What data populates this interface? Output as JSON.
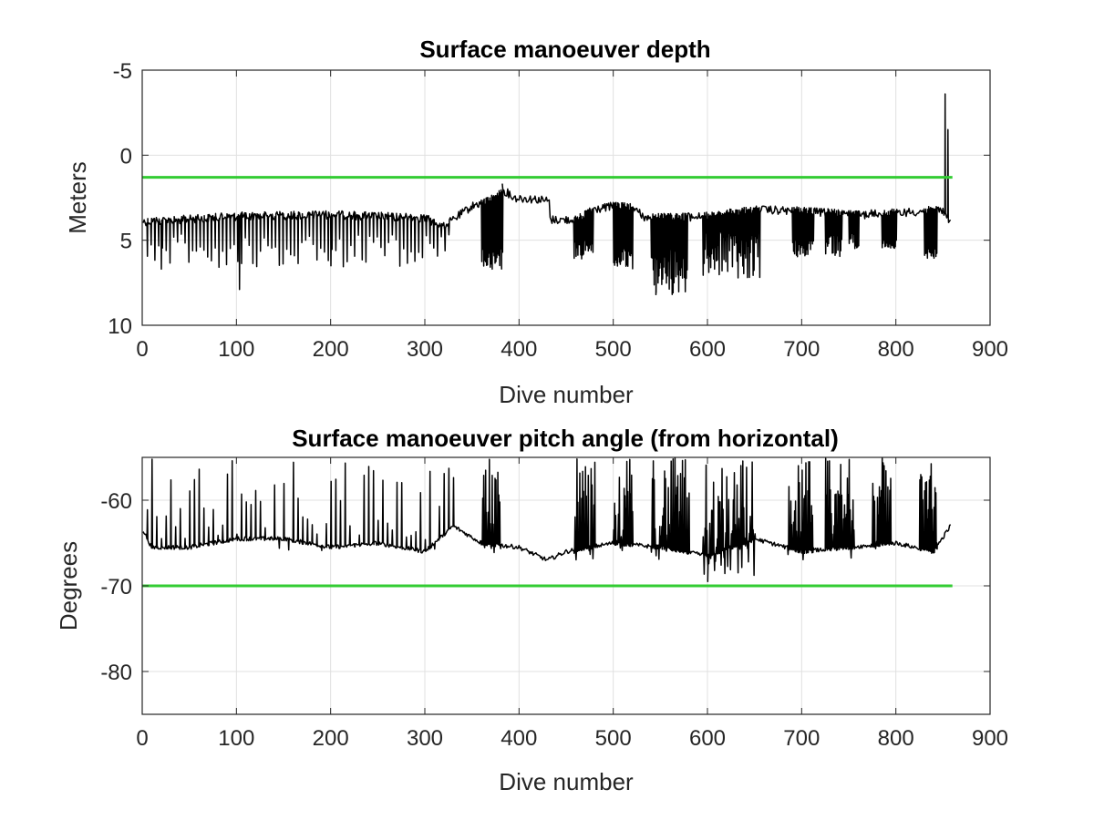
{
  "chart_data": [
    {
      "type": "line",
      "title": "Surface manoeuver depth",
      "xlabel": "Dive number",
      "ylabel": "Meters",
      "xlim": [
        0,
        900
      ],
      "ylim": [
        -5,
        10
      ],
      "y_reversed": true,
      "grid": true,
      "xticks": [
        "0",
        "100",
        "200",
        "300",
        "400",
        "500",
        "600",
        "700",
        "800",
        "900"
      ],
      "yticks": [
        "-5",
        "0",
        "5",
        "10"
      ],
      "series": [
        {
          "color": "#000000",
          "style": "noisy-line",
          "baseline": [
            [
              1,
              3.9
            ],
            [
              40,
              3.8
            ],
            [
              100,
              3.6
            ],
            [
              200,
              3.5
            ],
            [
              300,
              3.7
            ],
            [
              320,
              4.2
            ],
            [
              335,
              3.6
            ],
            [
              350,
              3.0
            ],
            [
              365,
              2.7
            ],
            [
              375,
              2.5
            ],
            [
              382,
              2.0
            ],
            [
              395,
              2.5
            ],
            [
              420,
              2.6
            ],
            [
              432,
              2.7
            ],
            [
              433,
              3.8
            ],
            [
              460,
              3.8
            ],
            [
              480,
              3.2
            ],
            [
              500,
              3.0
            ],
            [
              520,
              3.1
            ],
            [
              535,
              3.7
            ],
            [
              600,
              3.6
            ],
            [
              650,
              3.2
            ],
            [
              700,
              3.3
            ],
            [
              760,
              3.5
            ],
            [
              800,
              3.4
            ],
            [
              850,
              3.2
            ],
            [
              858,
              4.0
            ]
          ],
          "spike_segments": [
            {
              "from": 5,
              "to": 325,
              "every": 4,
              "min": 4.6,
              "max": 6.6
            },
            {
              "from": 360,
              "to": 382,
              "every": 1,
              "min": 5.5,
              "max": 6.7
            },
            {
              "from": 458,
              "to": 478,
              "every": 1,
              "min": 5.0,
              "max": 6.2
            },
            {
              "from": 500,
              "to": 520,
              "every": 1,
              "min": 5.5,
              "max": 6.9
            },
            {
              "from": 540,
              "to": 578,
              "every": 1,
              "min": 5.5,
              "max": 8.2
            },
            {
              "from": 595,
              "to": 655,
              "every": 1,
              "min": 4.5,
              "max": 7.3
            },
            {
              "from": 690,
              "to": 712,
              "every": 1,
              "min": 5.0,
              "max": 6.0
            },
            {
              "from": 725,
              "to": 742,
              "every": 1,
              "min": 4.5,
              "max": 6.0
            },
            {
              "from": 750,
              "to": 760,
              "every": 1,
              "min": 4.5,
              "max": 5.5
            },
            {
              "from": 785,
              "to": 800,
              "every": 1,
              "min": 5.0,
              "max": 5.5
            },
            {
              "from": 830,
              "to": 843,
              "every": 1,
              "min": 5.5,
              "max": 6.2
            }
          ],
          "extremes": [
            [
              20,
              6.7
            ],
            [
              103,
              7.9
            ],
            [
              200,
              6.5
            ],
            [
              382,
              1.7
            ],
            [
              545,
              8.2
            ],
            [
              852,
              -3.6
            ],
            [
              855,
              -1.5
            ]
          ]
        },
        {
          "color": "#33cc33",
          "style": "constant",
          "x": [
            0,
            860
          ],
          "y": [
            1.3,
            1.3
          ]
        }
      ]
    },
    {
      "type": "line",
      "title": "Surface manoeuver pitch angle (from horizontal)",
      "xlabel": "Dive number",
      "ylabel": "Degrees",
      "xlim": [
        0,
        900
      ],
      "ylim": [
        -85,
        -55
      ],
      "grid": true,
      "xticks": [
        "0",
        "100",
        "200",
        "300",
        "400",
        "500",
        "600",
        "700",
        "800",
        "900"
      ],
      "yticks": [
        "-60",
        "-70",
        "-80"
      ],
      "series": [
        {
          "color": "#000000",
          "style": "noisy-line",
          "baseline": [
            [
              1,
              -63.5
            ],
            [
              10,
              -65.5
            ],
            [
              50,
              -65.5
            ],
            [
              100,
              -64.5
            ],
            [
              150,
              -64.5
            ],
            [
              200,
              -65.5
            ],
            [
              250,
              -65
            ],
            [
              300,
              -66
            ],
            [
              330,
              -63
            ],
            [
              360,
              -65
            ],
            [
              400,
              -65.5
            ],
            [
              430,
              -67
            ],
            [
              450,
              -66
            ],
            [
              500,
              -65
            ],
            [
              550,
              -65.5
            ],
            [
              600,
              -66.5
            ],
            [
              650,
              -64.5
            ],
            [
              700,
              -66
            ],
            [
              750,
              -65.5
            ],
            [
              800,
              -65
            ],
            [
              840,
              -66
            ],
            [
              858,
              -63
            ]
          ],
          "spike_segments": [
            {
              "from": 5,
              "to": 330,
              "every": 5,
              "min": -66,
              "max": -55
            },
            {
              "from": 360,
              "to": 380,
              "every": 1,
              "min": -67,
              "max": -55
            },
            {
              "from": 458,
              "to": 480,
              "every": 1,
              "min": -67,
              "max": -55
            },
            {
              "from": 500,
              "to": 520,
              "every": 1,
              "min": -66,
              "max": -55
            },
            {
              "from": 540,
              "to": 580,
              "every": 1,
              "min": -67,
              "max": -55
            },
            {
              "from": 595,
              "to": 650,
              "every": 1,
              "min": -69,
              "max": -55
            },
            {
              "from": 685,
              "to": 712,
              "every": 1,
              "min": -67,
              "max": -55
            },
            {
              "from": 725,
              "to": 755,
              "every": 1,
              "min": -67,
              "max": -55
            },
            {
              "from": 775,
              "to": 795,
              "every": 1,
              "min": -66,
              "max": -55
            },
            {
              "from": 825,
              "to": 843,
              "every": 1,
              "min": -66,
              "max": -55
            }
          ],
          "extremes": [
            [
              600,
              -69.5
            ]
          ]
        },
        {
          "color": "#33cc33",
          "style": "constant",
          "x": [
            0,
            860
          ],
          "y": [
            -70,
            -70
          ]
        }
      ]
    }
  ]
}
